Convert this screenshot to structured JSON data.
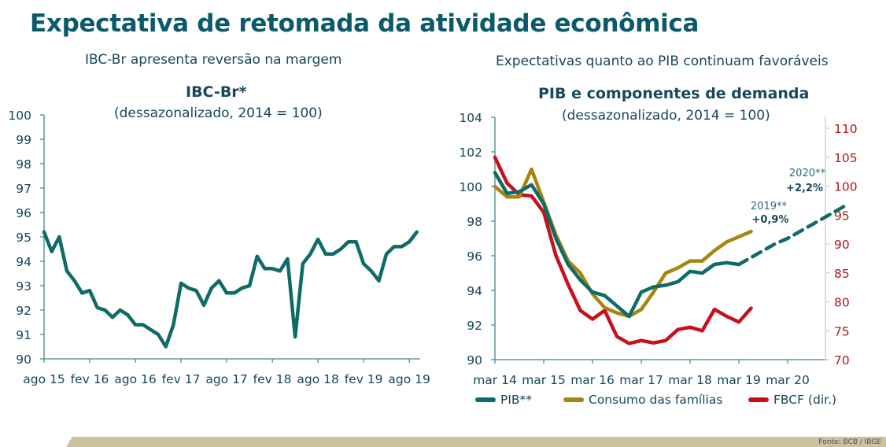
{
  "page": {
    "title": "Expectativa de retomada da atividade econômica",
    "left_subtitle": "IBC-Br apresenta reversão na margem",
    "right_subtitle": "Expectativas quanto ao PIB continuam favoráveis",
    "source": "Fonte: BCB / IBGE"
  },
  "colors": {
    "teal": "#0e6b66",
    "gold": "#a7850f",
    "red": "#c8101b",
    "axis": "#3a8a88",
    "title": "#0b5a6b",
    "footer_band": "#cdc09e"
  },
  "chart_data": [
    {
      "type": "line",
      "title": "IBC-Br*",
      "subtitle": "(dessazonalizado, 2014 = 100)",
      "xlabel": "",
      "ylabel": "",
      "ylim": [
        90,
        100
      ],
      "yticks": [
        "90",
        "91",
        "92",
        "93",
        "94",
        "95",
        "96",
        "97",
        "98",
        "99",
        "100"
      ],
      "xticks": [
        "ago 15",
        "fev 16",
        "ago 16",
        "fev 17",
        "ago 17",
        "fev 18",
        "ago 18",
        "fev 19",
        "ago 19"
      ],
      "x_start": "ago 15",
      "frequency": "monthly",
      "grid": false,
      "series": [
        {
          "name": "IBC-Br",
          "color": "#0e6b66",
          "values": [
            95.2,
            94.4,
            95.0,
            93.6,
            93.2,
            92.7,
            92.8,
            92.1,
            92.0,
            91.7,
            92.0,
            91.8,
            91.4,
            91.4,
            91.2,
            91.0,
            90.5,
            91.4,
            93.1,
            92.9,
            92.8,
            92.2,
            92.9,
            93.2,
            92.7,
            92.7,
            92.9,
            93.0,
            94.2,
            93.7,
            93.7,
            93.6,
            94.1,
            90.9,
            93.9,
            94.3,
            94.9,
            94.3,
            94.3,
            94.5,
            94.8,
            94.8,
            93.9,
            93.6,
            93.2,
            94.3,
            94.6,
            94.6,
            94.8,
            95.2
          ]
        }
      ]
    },
    {
      "type": "line",
      "title": "PIB e componentes de demanda",
      "subtitle": "(dessazonalizado, 2014 = 100)",
      "xlabel": "",
      "ylabel": "",
      "ylim": [
        90,
        104
      ],
      "y2lim": [
        70,
        110
      ],
      "yticks": [
        "90",
        "92",
        "94",
        "96",
        "98",
        "100",
        "102",
        "104"
      ],
      "y2ticks": [
        "70",
        "75",
        "80",
        "85",
        "90",
        "95",
        "100",
        "105",
        "110"
      ],
      "xticks": [
        "mar 14",
        "mar 15",
        "mar 16",
        "mar 17",
        "mar 18",
        "mar 19",
        "mar 20"
      ],
      "x_start": "mar 14",
      "frequency": "quarterly",
      "grid": false,
      "legend_position": "bottom",
      "series": [
        {
          "name": "PIB**",
          "axis": "left",
          "color": "#0e6b66",
          "values": [
            100.8,
            99.6,
            99.7,
            100.1,
            99.0,
            97.0,
            95.5,
            94.6,
            93.9,
            93.7,
            93.1,
            92.5,
            93.9,
            94.2,
            94.3,
            94.5,
            95.1,
            95.0,
            95.5,
            95.6,
            95.5
          ],
          "projection": {
            "style": "dashed",
            "start_index": 20,
            "values": [
              95.5,
              95.9,
              96.3,
              96.7,
              97.0,
              97.4,
              97.8,
              98.2,
              98.6,
              99.0
            ]
          }
        },
        {
          "name": "Consumo das famílias",
          "axis": "left",
          "color": "#a7850f",
          "values": [
            100.0,
            99.4,
            99.4,
            101.0,
            99.1,
            97.2,
            95.7,
            95.0,
            93.8,
            93.0,
            92.7,
            92.5,
            92.9,
            93.9,
            95.0,
            95.3,
            95.7,
            95.7,
            96.3,
            96.8,
            97.1,
            97.4
          ]
        },
        {
          "name": "FBCF (dir.)",
          "axis": "right",
          "color": "#c8101b",
          "values": [
            105.0,
            100.5,
            98.5,
            98.3,
            95.5,
            88.0,
            83.0,
            78.5,
            77.0,
            78.5,
            74.0,
            72.8,
            73.3,
            72.9,
            73.3,
            75.2,
            75.6,
            75.0,
            78.7,
            77.5,
            76.5,
            78.9
          ]
        }
      ],
      "annotations": [
        {
          "label": "2019**",
          "value": "+0,9%"
        },
        {
          "label": "2020**",
          "value": "+2,2%"
        }
      ]
    }
  ]
}
